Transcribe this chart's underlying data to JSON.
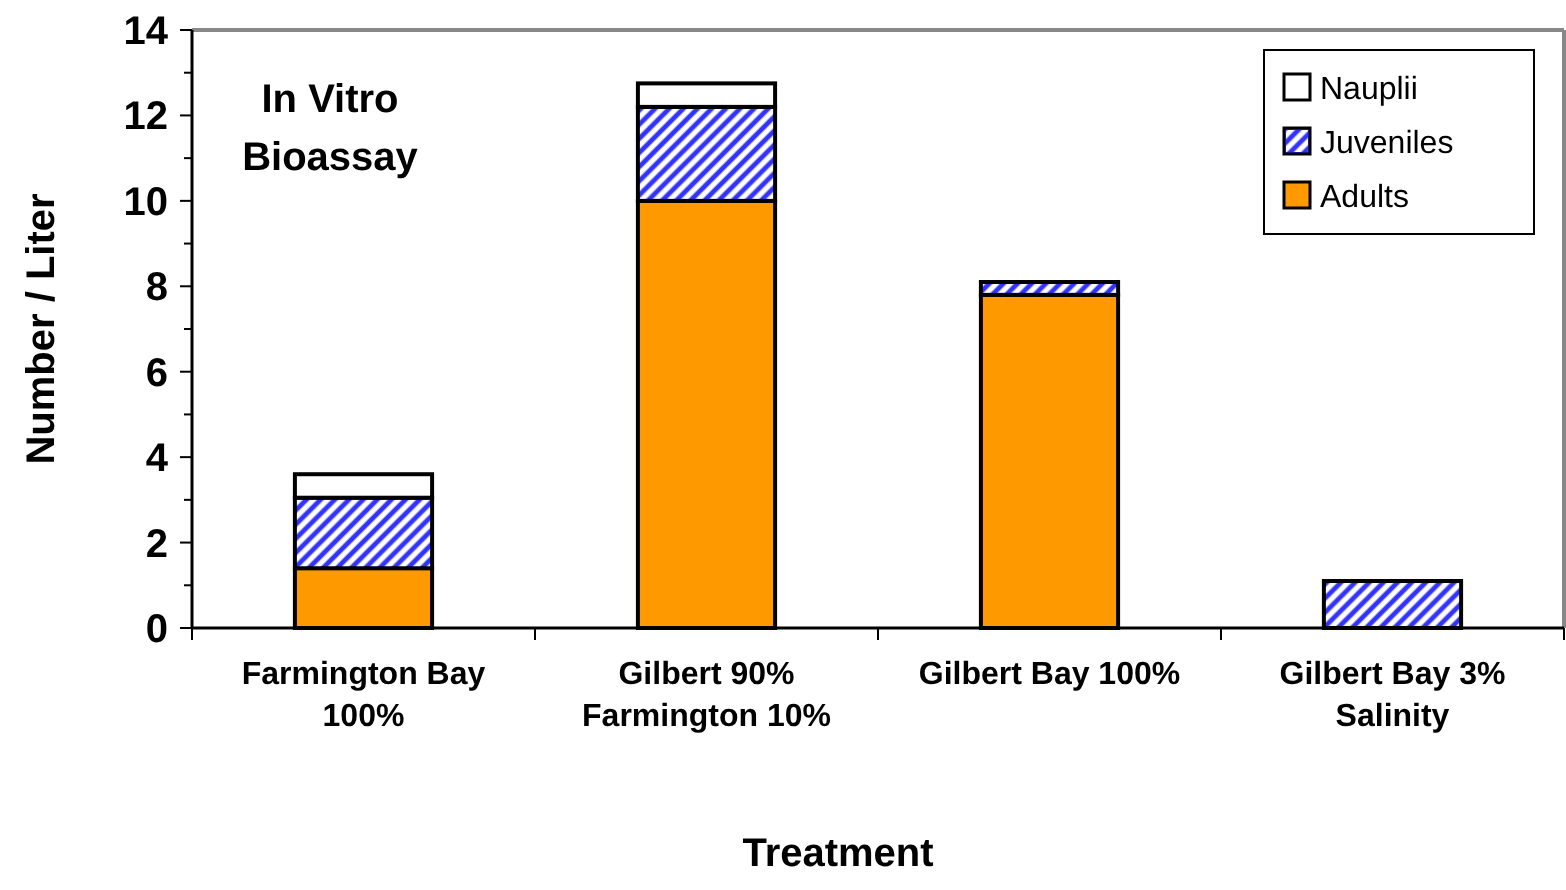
{
  "chart_data": {
    "type": "bar",
    "stacked": true,
    "xlabel": "Treatment",
    "ylabel": "Number / Liter",
    "categories": [
      "Farmington Bay\n100%",
      "Gilbert 90%\nFarmington 10%",
      "Gilbert Bay 100%",
      "Gilbert Bay 3%\nSalinity"
    ],
    "series": [
      {
        "name": "Adults",
        "color": "#ff9900",
        "values": [
          1.4,
          10.0,
          7.8,
          0
        ]
      },
      {
        "name": "Juveniles",
        "color": "#3333ff",
        "values": [
          1.65,
          2.2,
          0.3,
          1.1
        ]
      },
      {
        "name": "Nauplii",
        "color": "#ffffff",
        "values": [
          0.55,
          0.55,
          0,
          0
        ]
      }
    ],
    "ylim": [
      0,
      14
    ],
    "yticks": [
      0,
      {
        "value": 1,
        "label": null
      },
      2,
      {
        "value": 3,
        "label": null
      },
      4,
      {
        "value": 5,
        "label": null
      },
      6,
      {
        "value": 7,
        "label": null
      },
      8,
      {
        "value": 9,
        "label": null
      },
      10,
      {
        "value": 11,
        "label": null
      },
      12,
      {
        "value": 13,
        "label": null
      },
      14
    ],
    "legend": "top right",
    "grid": false,
    "annotations": [
      "In Vitro Bioassay"
    ]
  }
}
